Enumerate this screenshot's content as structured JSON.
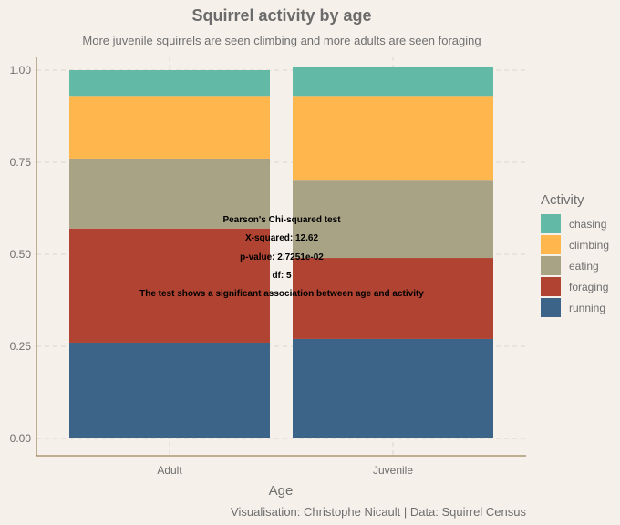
{
  "chart_data": {
    "type": "bar",
    "stacked": true,
    "title": "Squirrel activity by age",
    "subtitle": "More juvenile squirrels are seen climbing and more adults are seen foraging",
    "xlabel": "Age",
    "ylabel": "",
    "ylim": [
      0,
      1
    ],
    "yticks": [
      "0.00",
      "0.25",
      "0.50",
      "0.75",
      "1.00"
    ],
    "categories": [
      "Adult",
      "Juvenile"
    ],
    "legend_title": "Activity",
    "legend_position": "right",
    "grid": true,
    "series": [
      {
        "name": "chasing",
        "color": "#62b9a6",
        "values": [
          0.07,
          0.08
        ]
      },
      {
        "name": "climbing",
        "color": "#ffb74d",
        "values": [
          0.17,
          0.23
        ]
      },
      {
        "name": "eating",
        "color": "#a9a386",
        "values": [
          0.19,
          0.21
        ]
      },
      {
        "name": "foraging",
        "color": "#b04331",
        "values": [
          0.31,
          0.22
        ]
      },
      {
        "name": "running",
        "color": "#3c6489",
        "values": [
          0.26,
          0.27
        ]
      }
    ],
    "annotations": [
      "Pearson's Chi-squared test",
      "X-squared: 12.62",
      "p-value: 2.7251e-02",
      "df: 5",
      "The test shows a significant association between age and activity"
    ],
    "caption": "Visualisation: Christophe Nicault | Data: Squirrel Census"
  }
}
